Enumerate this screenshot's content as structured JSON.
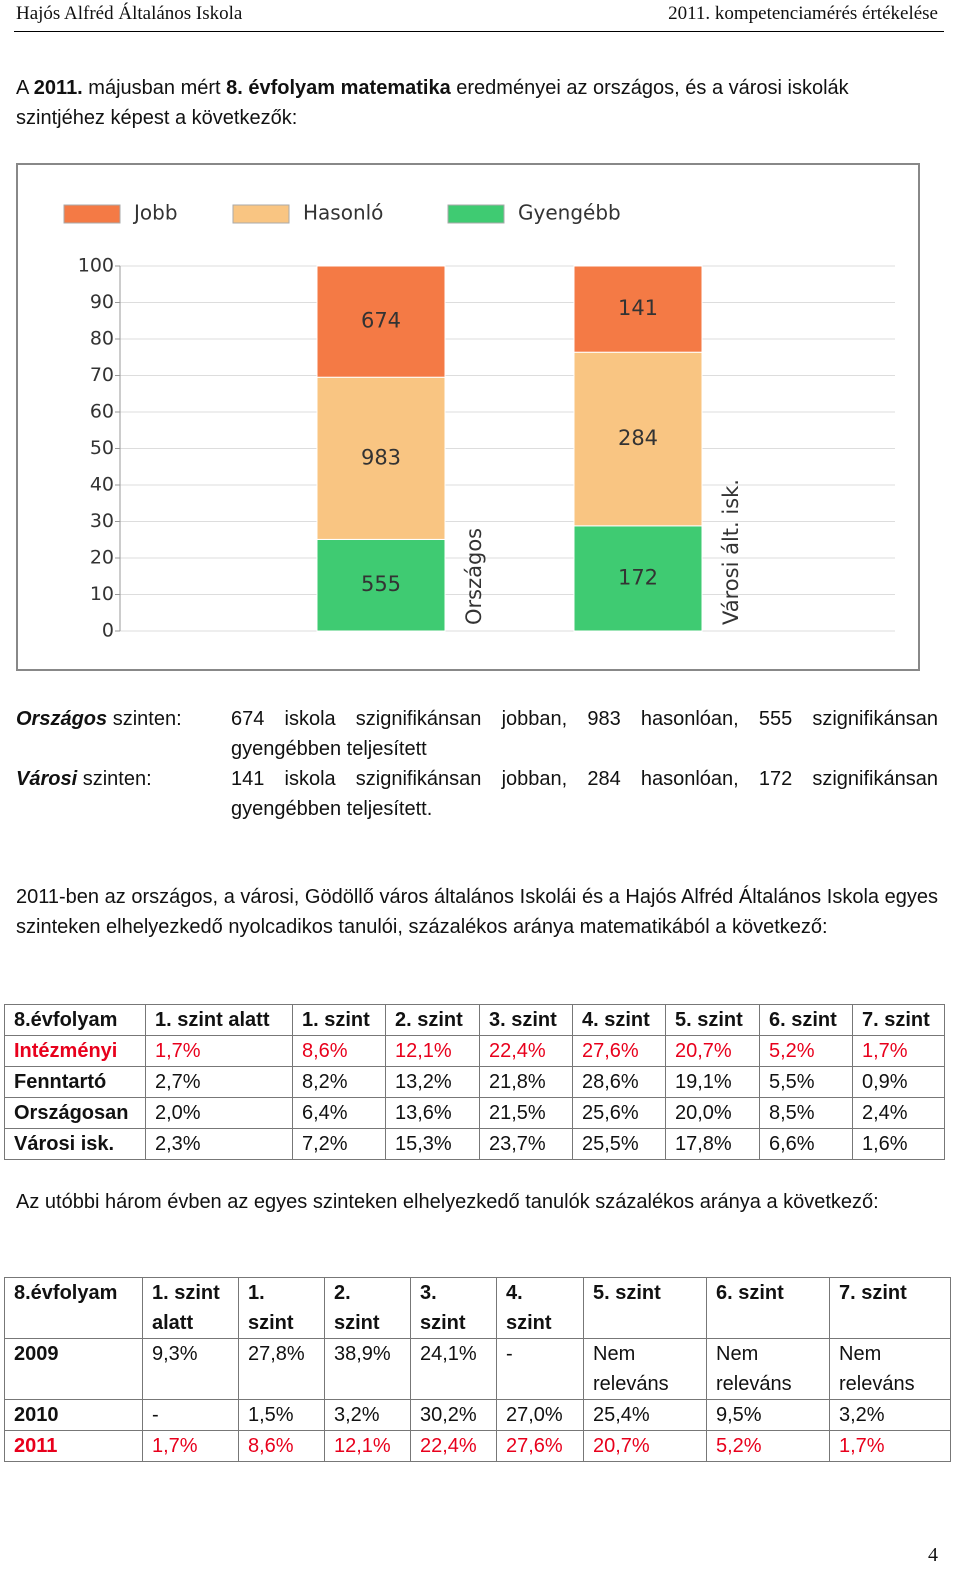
{
  "header": {
    "left": "Hajós Alfréd Általános Iskola",
    "right": "2011. kompetenciamérés értékelése"
  },
  "intro": [
    {
      "text": "A ",
      "bold": false
    },
    {
      "text": "2011.",
      "bold": true
    },
    {
      "text": " májusban mért ",
      "bold": false
    },
    {
      "text": "8. évfolyam matematika",
      "bold": true
    },
    {
      "text": " eredményei az országos, és a városi iskolák szintjéhez képest a következők:",
      "bold": false
    }
  ],
  "chart_data": {
    "type": "bar",
    "stacking": "percent",
    "categories": [
      "Országos",
      "Városi ált. isk."
    ],
    "series": [
      {
        "name": "Jobb",
        "color": "#f47a45",
        "values": [
          674,
          141
        ]
      },
      {
        "name": "Hasonló",
        "color": "#f9c582",
        "values": [
          983,
          284
        ]
      },
      {
        "name": "Gyengébb",
        "color": "#3fcb72",
        "values": [
          555,
          172
        ]
      }
    ],
    "ylim": [
      0,
      100
    ],
    "yticks": [
      0,
      10,
      20,
      30,
      40,
      50,
      60,
      70,
      80,
      90,
      100
    ],
    "grid": true,
    "legend": "top"
  },
  "summary": [
    {
      "label": "Országos",
      "label_rest": " szinten:",
      "text": "674 iskola szignifikánsan jobban, 983 hasonlóan, 555 szignifikánsan gyengébben teljesített"
    },
    {
      "label": "Városi",
      "label_rest": " szinten:",
      "text": "141 iskola szignifikánsan jobban, 284 hasonlóan, 172 szignifikánsan gyengébben teljesített."
    }
  ],
  "paragraph2": "2011-ben az országos, a városi, Gödöllő város általános Iskolái és a Hajós Alfréd Általános Iskola egyes szinteken elhelyezkedő nyolcadikos tanulói, százalékos aránya matematikából a következő:",
  "table1": {
    "header": [
      "8.évfolyam",
      "1. szint alatt",
      "1. szint",
      "2. szint",
      "3. szint",
      "4. szint",
      "5. szint",
      "6. szint",
      "7. szint"
    ],
    "rows": [
      [
        "Intézményi",
        "1,7%",
        "8,6%",
        "12,1%",
        "22,4%",
        "27,6%",
        "20,7%",
        "5,2%",
        "1,7%"
      ],
      [
        "Fenntartó",
        "2,7%",
        "8,2%",
        "13,2%",
        "21,8%",
        "28,6%",
        "19,1%",
        "5,5%",
        "0,9%"
      ],
      [
        "Országosan",
        "2,0%",
        "6,4%",
        "13,6%",
        "21,5%",
        "25,6%",
        "20,0%",
        "8,5%",
        "2,4%"
      ],
      [
        "Városi isk.",
        "2,3%",
        "7,2%",
        "15,3%",
        "23,7%",
        "25,5%",
        "17,8%",
        "6,6%",
        "1,6%"
      ]
    ],
    "highlight_row": 0,
    "highlight_color": "#e8001c"
  },
  "paragraph3": "Az utóbbi három évben az egyes szinteken elhelyezkedő tanulók százalékos aránya a következő:",
  "table2": {
    "header": [
      "8.évfolyam",
      "1. szint alatt",
      "1. szint",
      "2. szint",
      "3. szint",
      "4. szint",
      "5. szint",
      "6. szint",
      "7. szint"
    ],
    "rows": [
      [
        "2009",
        "9,3%",
        "27,8%",
        "38,9%",
        "24,1%",
        "-",
        "Nem releváns",
        "Nem releváns",
        "Nem releváns"
      ],
      [
        "2010",
        "-",
        "1,5%",
        "3,2%",
        "30,2%",
        "27,0%",
        "25,4%",
        "9,5%",
        "3,2%"
      ],
      [
        "2011",
        "1,7%",
        "8,6%",
        "12,1%",
        "22,4%",
        "27,6%",
        "20,7%",
        "5,2%",
        "1,7%"
      ]
    ],
    "highlight_row": 2,
    "highlight_color": "#e8001c"
  },
  "page_number": "4"
}
